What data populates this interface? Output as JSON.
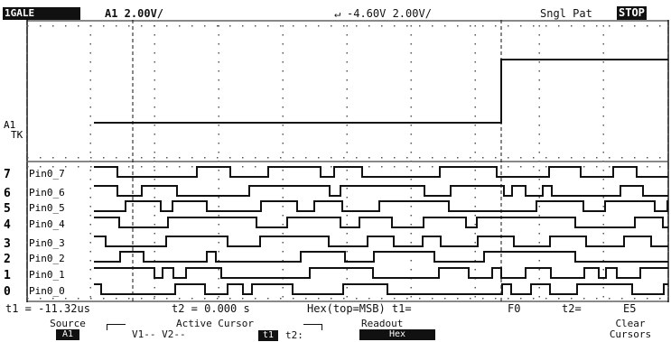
{
  "status_bar": {
    "scale_tag": "1GALE",
    "channel_scale": "A1 2.00V/",
    "trigger_info": "-4.60V 2.00V/",
    "acq_mode": "Sngl Pat",
    "run_state": "STOP"
  },
  "analog": {
    "label": "A1",
    "trigger_label": "TK"
  },
  "digital_channels": [
    {
      "index": "7",
      "name": "Pin0_7"
    },
    {
      "index": "6",
      "name": "Pin0_6"
    },
    {
      "index": "5",
      "name": "Pin0_5"
    },
    {
      "index": "4",
      "name": "Pin0_4"
    },
    {
      "index": "3",
      "name": "Pin0_3"
    },
    {
      "index": "2",
      "name": "Pin0_2"
    },
    {
      "index": "1",
      "name": "Pin0_1"
    },
    {
      "index": "0",
      "name": "Pin0_0"
    }
  ],
  "readout": {
    "t1": "t1 = -11.32us",
    "t2": "t2 = 0.000 s",
    "format": "Hex(top=MSB) t1=",
    "t1_value": "F0",
    "t2_label": "t2=",
    "t2_value": "E5"
  },
  "softkeys": {
    "source_label": "Source",
    "source_value": "A1",
    "active_cursor_label": "Active Cursor",
    "active_cursor_options": "V1-- V2--",
    "t1_key": "t1",
    "t2_key": "t2:",
    "readout_label": "Readout",
    "readout_value": "Hex",
    "clear_label": "Clear",
    "cursors_label": "Cursors"
  },
  "colors": {
    "trace": "#111111",
    "background": "#ffffff"
  }
}
